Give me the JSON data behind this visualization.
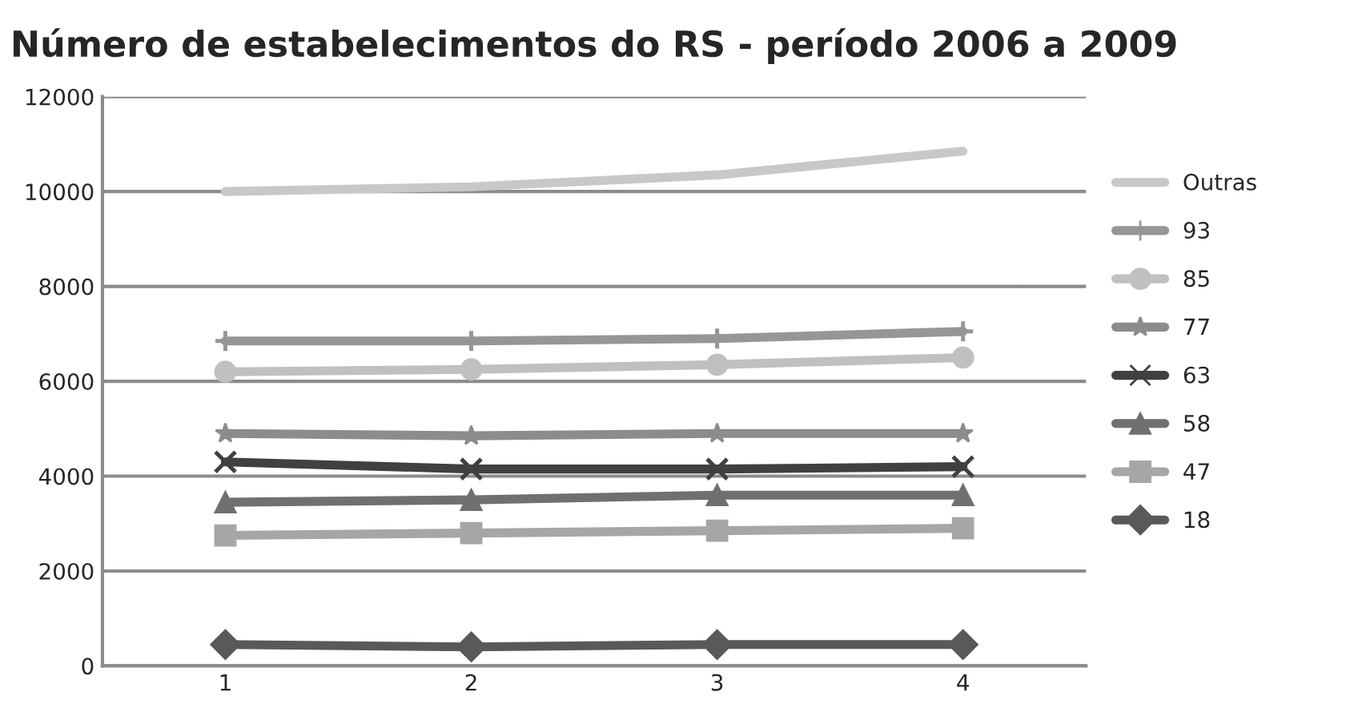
{
  "chart_data": {
    "type": "line",
    "title": "Número de estabelecimentos do RS - período 2006 a 2009",
    "categories": [
      "1",
      "2",
      "3",
      "4"
    ],
    "series": [
      {
        "name": "Outras",
        "color": "#c8c8c8",
        "marker": "none",
        "values": [
          10000,
          10100,
          10350,
          10850
        ]
      },
      {
        "name": "93",
        "color": "#969696",
        "marker": "plus",
        "values": [
          6850,
          6850,
          6900,
          7050
        ]
      },
      {
        "name": "85",
        "color": "#c0c0c0",
        "marker": "circle",
        "values": [
          6200,
          6250,
          6350,
          6500
        ]
      },
      {
        "name": "77",
        "color": "#8c8c8c",
        "marker": "star",
        "values": [
          4900,
          4850,
          4900,
          4900
        ]
      },
      {
        "name": "63",
        "color": "#404040",
        "marker": "cross",
        "values": [
          4300,
          4150,
          4150,
          4200
        ]
      },
      {
        "name": "58",
        "color": "#707070",
        "marker": "triangle",
        "values": [
          3450,
          3500,
          3600,
          3600
        ]
      },
      {
        "name": "47",
        "color": "#a6a6a6",
        "marker": "square",
        "values": [
          2750,
          2800,
          2850,
          2900
        ]
      },
      {
        "name": "18",
        "color": "#595959",
        "marker": "diamond",
        "values": [
          450,
          400,
          450,
          450
        ]
      }
    ],
    "ylim": [
      0,
      12000
    ],
    "yticks": [
      0,
      2000,
      4000,
      6000,
      8000,
      10000,
      12000
    ],
    "grid": "y",
    "legend": "right",
    "line_style": "solid"
  }
}
